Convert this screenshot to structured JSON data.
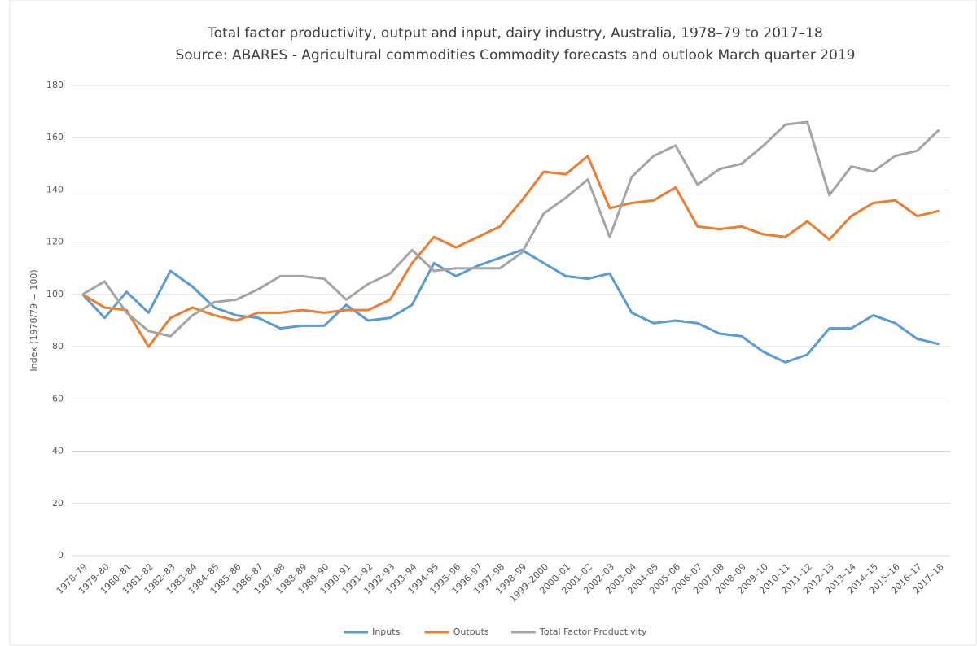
{
  "chart_data": {
    "type": "line",
    "title": "Total factor productivity, output and input, dairy industry, Australia, 1978–79 to 2017–18",
    "subtitle": "Source: ABARES - Agricultural commodities Commodity forecasts and outlook March quarter 2019",
    "y_label": "Index (1978/79 = 100)",
    "categories": [
      "1978–79",
      "1979–80",
      "1980–81",
      "1981–82",
      "1982–83",
      "1983–84",
      "1984–85",
      "1985–86",
      "1986–87",
      "1987–88",
      "1988–89",
      "1989–90",
      "1990–91",
      "1991–92",
      "1992–93",
      "1993–94",
      "1994–95",
      "1995–96",
      "1996–97",
      "1997–98",
      "1998–99",
      "1999–2000",
      "2000–01",
      "2001–02",
      "2002–03",
      "2003–04",
      "2004–05",
      "2005–06",
      "2006–07",
      "2007–08",
      "2008–09",
      "2009–10",
      "2010–11",
      "2011–12",
      "2012–13",
      "2013–14",
      "2014–15",
      "2015–16",
      "2016–17",
      "2017–18"
    ],
    "series": [
      {
        "name": "Inputs",
        "color": "#5b9bd5",
        "values": [
          100,
          91,
          101,
          93,
          109,
          103,
          95,
          92,
          91,
          87,
          88,
          88,
          96,
          90,
          91,
          96,
          112,
          107,
          111,
          114,
          117,
          112,
          107,
          106,
          108,
          93,
          89,
          90,
          89,
          85,
          84,
          78,
          74,
          77,
          87,
          87,
          92,
          89,
          83,
          81
        ]
      },
      {
        "name": "Outputs",
        "color": "#ed7d31",
        "values": [
          100,
          95,
          94,
          80,
          91,
          95,
          92,
          90,
          93,
          93,
          94,
          93,
          94,
          94,
          98,
          112,
          122,
          118,
          122,
          126,
          136,
          147,
          146,
          153,
          133,
          135,
          136,
          141,
          126,
          125,
          126,
          123,
          122,
          128,
          121,
          130,
          135,
          136,
          130,
          132
        ]
      },
      {
        "name": "Total Factor Productivity",
        "color": "#a5a5a5",
        "values": [
          100,
          105,
          93,
          86,
          84,
          92,
          97,
          98,
          102,
          107,
          107,
          106,
          98,
          104,
          108,
          117,
          109,
          110,
          110,
          110,
          116,
          131,
          137,
          144,
          122,
          145,
          153,
          157,
          142,
          148,
          150,
          157,
          165,
          166,
          138,
          149,
          147,
          153,
          155,
          163
        ]
      }
    ],
    "ylim": [
      0,
      180
    ],
    "yticks": [
      0,
      20,
      40,
      60,
      80,
      100,
      120,
      140,
      160,
      180
    ],
    "grid": true,
    "legend": "bottom"
  }
}
